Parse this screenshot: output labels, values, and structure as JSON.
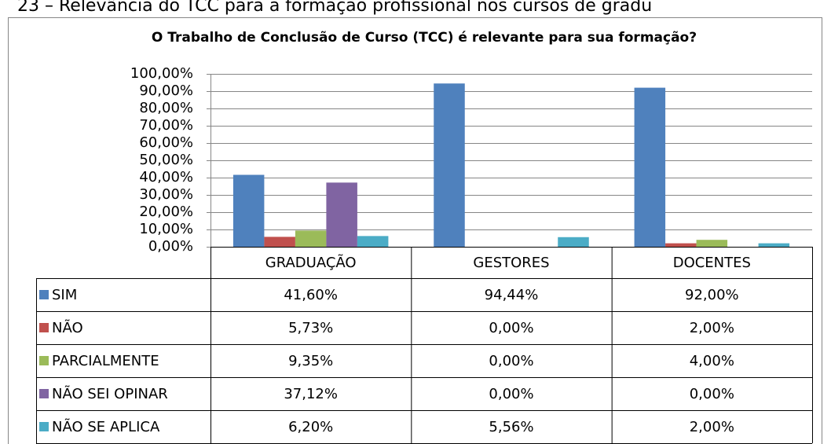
{
  "caption": "23 – Relevância do TCC para a formação profissional nos cursos de gradu",
  "chart_data": {
    "type": "bar",
    "title": "O Trabalho de Conclusão de Curso (TCC) é relevante para sua formação?",
    "categories": [
      "GRADUAÇÃO",
      "GESTORES",
      "DOCENTES"
    ],
    "series": [
      {
        "name": "SIM",
        "color": "#4f81bd",
        "values": [
          41.6,
          94.44,
          92
        ],
        "value_labels": [
          "41,60%",
          "94,44%",
          "92,00%"
        ]
      },
      {
        "name": "NÃO",
        "color": "#c0504d",
        "values": [
          5.73,
          0,
          2
        ],
        "value_labels": [
          "5,73%",
          "0,00%",
          "2,00%"
        ]
      },
      {
        "name": "PARCIALMENTE",
        "color": "#9bbb59",
        "values": [
          9.35,
          0,
          4
        ],
        "value_labels": [
          "9,35%",
          "0,00%",
          "4,00%"
        ]
      },
      {
        "name": "NÃO SEI OPINAR",
        "color": "#8064a2",
        "values": [
          37.12,
          0,
          0
        ],
        "value_labels": [
          "37,12%",
          "0,00%",
          "0,00%"
        ]
      },
      {
        "name": "NÃO SE APLICA",
        "color": "#4bacc6",
        "values": [
          6.2,
          5.56,
          2
        ],
        "value_labels": [
          "6,20%",
          "5,56%",
          "2,00%"
        ]
      }
    ],
    "ylim": [
      0,
      100
    ],
    "yticks": [
      {
        "value": 0,
        "label": "0,00%"
      },
      {
        "value": 10,
        "label": "10,00%"
      },
      {
        "value": 20,
        "label": "20,00%"
      },
      {
        "value": 30,
        "label": "30,00%"
      },
      {
        "value": 40,
        "label": "40,00%"
      },
      {
        "value": 50,
        "label": "50,00%"
      },
      {
        "value": 60,
        "label": "60,00%"
      },
      {
        "value": 70,
        "label": "70,00%"
      },
      {
        "value": 80,
        "label": "80,00%"
      },
      {
        "value": 90,
        "label": "90,00%"
      },
      {
        "value": 100,
        "label": "100,00%"
      }
    ],
    "grid": true
  }
}
